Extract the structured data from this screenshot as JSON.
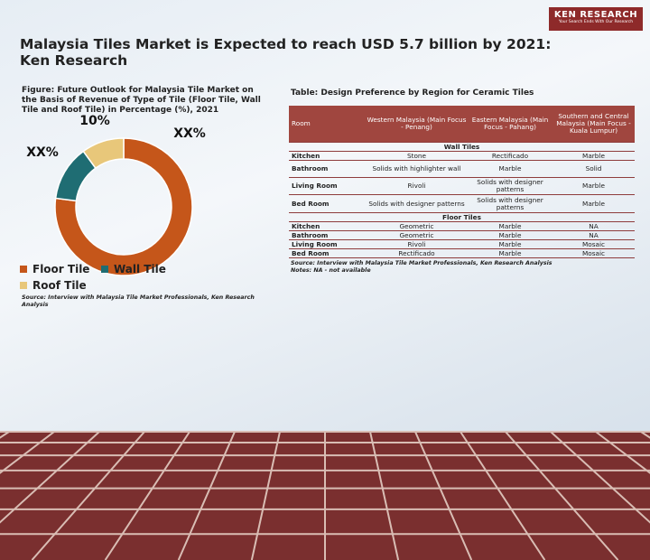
{
  "header": {
    "brand": "KEN RESEARCH",
    "tagline": "Your Search Ends With Our Research",
    "title": "Malaysia Tiles Market is Expected to reach USD 5.7 billion by 2021:  Ken Research"
  },
  "chart_data": {
    "type": "donut",
    "title": "Figure: Future Outlook for Malaysia Tile Market on the Basis of Revenue of Type of Tile (Floor Tile, Wall Tile and Roof Tile) in Percentage (%), 2021",
    "categories": [
      "Floor Tile",
      "Wall Tile",
      "Roof Tile"
    ],
    "values": [
      77,
      13,
      10
    ],
    "value_labels": [
      "XX%",
      "XX%",
      "10%"
    ],
    "colors": [
      "#c5561a",
      "#1f6d73",
      "#e8c77a"
    ],
    "source": "Source: Interview with Malaysia Tile Market Professionals, Ken Research Analysis"
  },
  "table": {
    "title": "Table: Design Preference by Region for Ceramic Tiles",
    "columns": [
      "Room",
      "Western Malaysia (Main Focus - Penang)",
      "Eastern Malaysia (Main Focus - Pahang)",
      "Southern and Central Malaysia (Main Focus - Kuala Lumpur)"
    ],
    "sections": [
      {
        "label": "Wall Tiles",
        "rows": [
          [
            "Kitchen",
            "Stone",
            "Rectificado",
            "Marble"
          ],
          [
            "Bathroom",
            "Solids with highlighter wall",
            "Marble",
            "Solid"
          ],
          [
            "Living Room",
            "Rivoli",
            "Solids with designer patterns",
            "Marble"
          ],
          [
            "Bed Room",
            "Solids with designer patterns",
            "Solids with designer patterns",
            "Marble"
          ]
        ]
      },
      {
        "label": "Floor Tiles",
        "rows": [
          [
            "Kitchen",
            "Geometric",
            "Marble",
            "NA"
          ],
          [
            "Bathroom",
            "Geometric",
            "Marble",
            "NA"
          ],
          [
            "Living Room",
            "Rivoli",
            "Marble",
            "Mosaic"
          ],
          [
            "Bed Room",
            "Rectificado",
            "Marble",
            "Mosaic"
          ]
        ]
      }
    ],
    "source": "Source: Interview with Malaysia Tile Market Professionals, Ken Research Analysis",
    "notes": "Notes: NA - not available"
  }
}
